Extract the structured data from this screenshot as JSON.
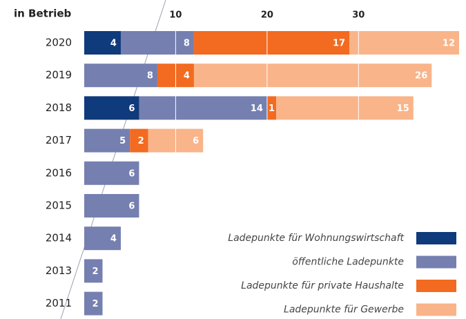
{
  "chart_data": {
    "type": "stacked-barh",
    "title": "in Betrieb",
    "categories": [
      "2020",
      "2019",
      "2018",
      "2017",
      "2016",
      "2015",
      "2014",
      "2013",
      "2011"
    ],
    "series": [
      {
        "name": "Ladepunkte für Wohnungswirtschaft",
        "color": "#0f3a7b",
        "values": [
          4,
          null,
          6,
          null,
          null,
          null,
          null,
          null,
          null
        ]
      },
      {
        "name": "öffentliche Ladepunkte",
        "color": "#7580b0",
        "values": [
          8,
          8,
          14,
          5,
          6,
          6,
          4,
          2,
          2
        ]
      },
      {
        "name": "Ladepunkte für private Haushalte",
        "color": "#f26b21",
        "values": [
          17,
          4,
          1,
          2,
          null,
          null,
          null,
          null,
          null
        ]
      },
      {
        "name": "Ladepunkte für Gewerbe",
        "color": "#f9b48a",
        "values": [
          12,
          26,
          15,
          6,
          null,
          null,
          null,
          null,
          null
        ]
      }
    ],
    "xlim": [
      0,
      41
    ],
    "xticks": [
      10,
      20,
      30
    ],
    "grid": true,
    "legend": "lower right"
  }
}
